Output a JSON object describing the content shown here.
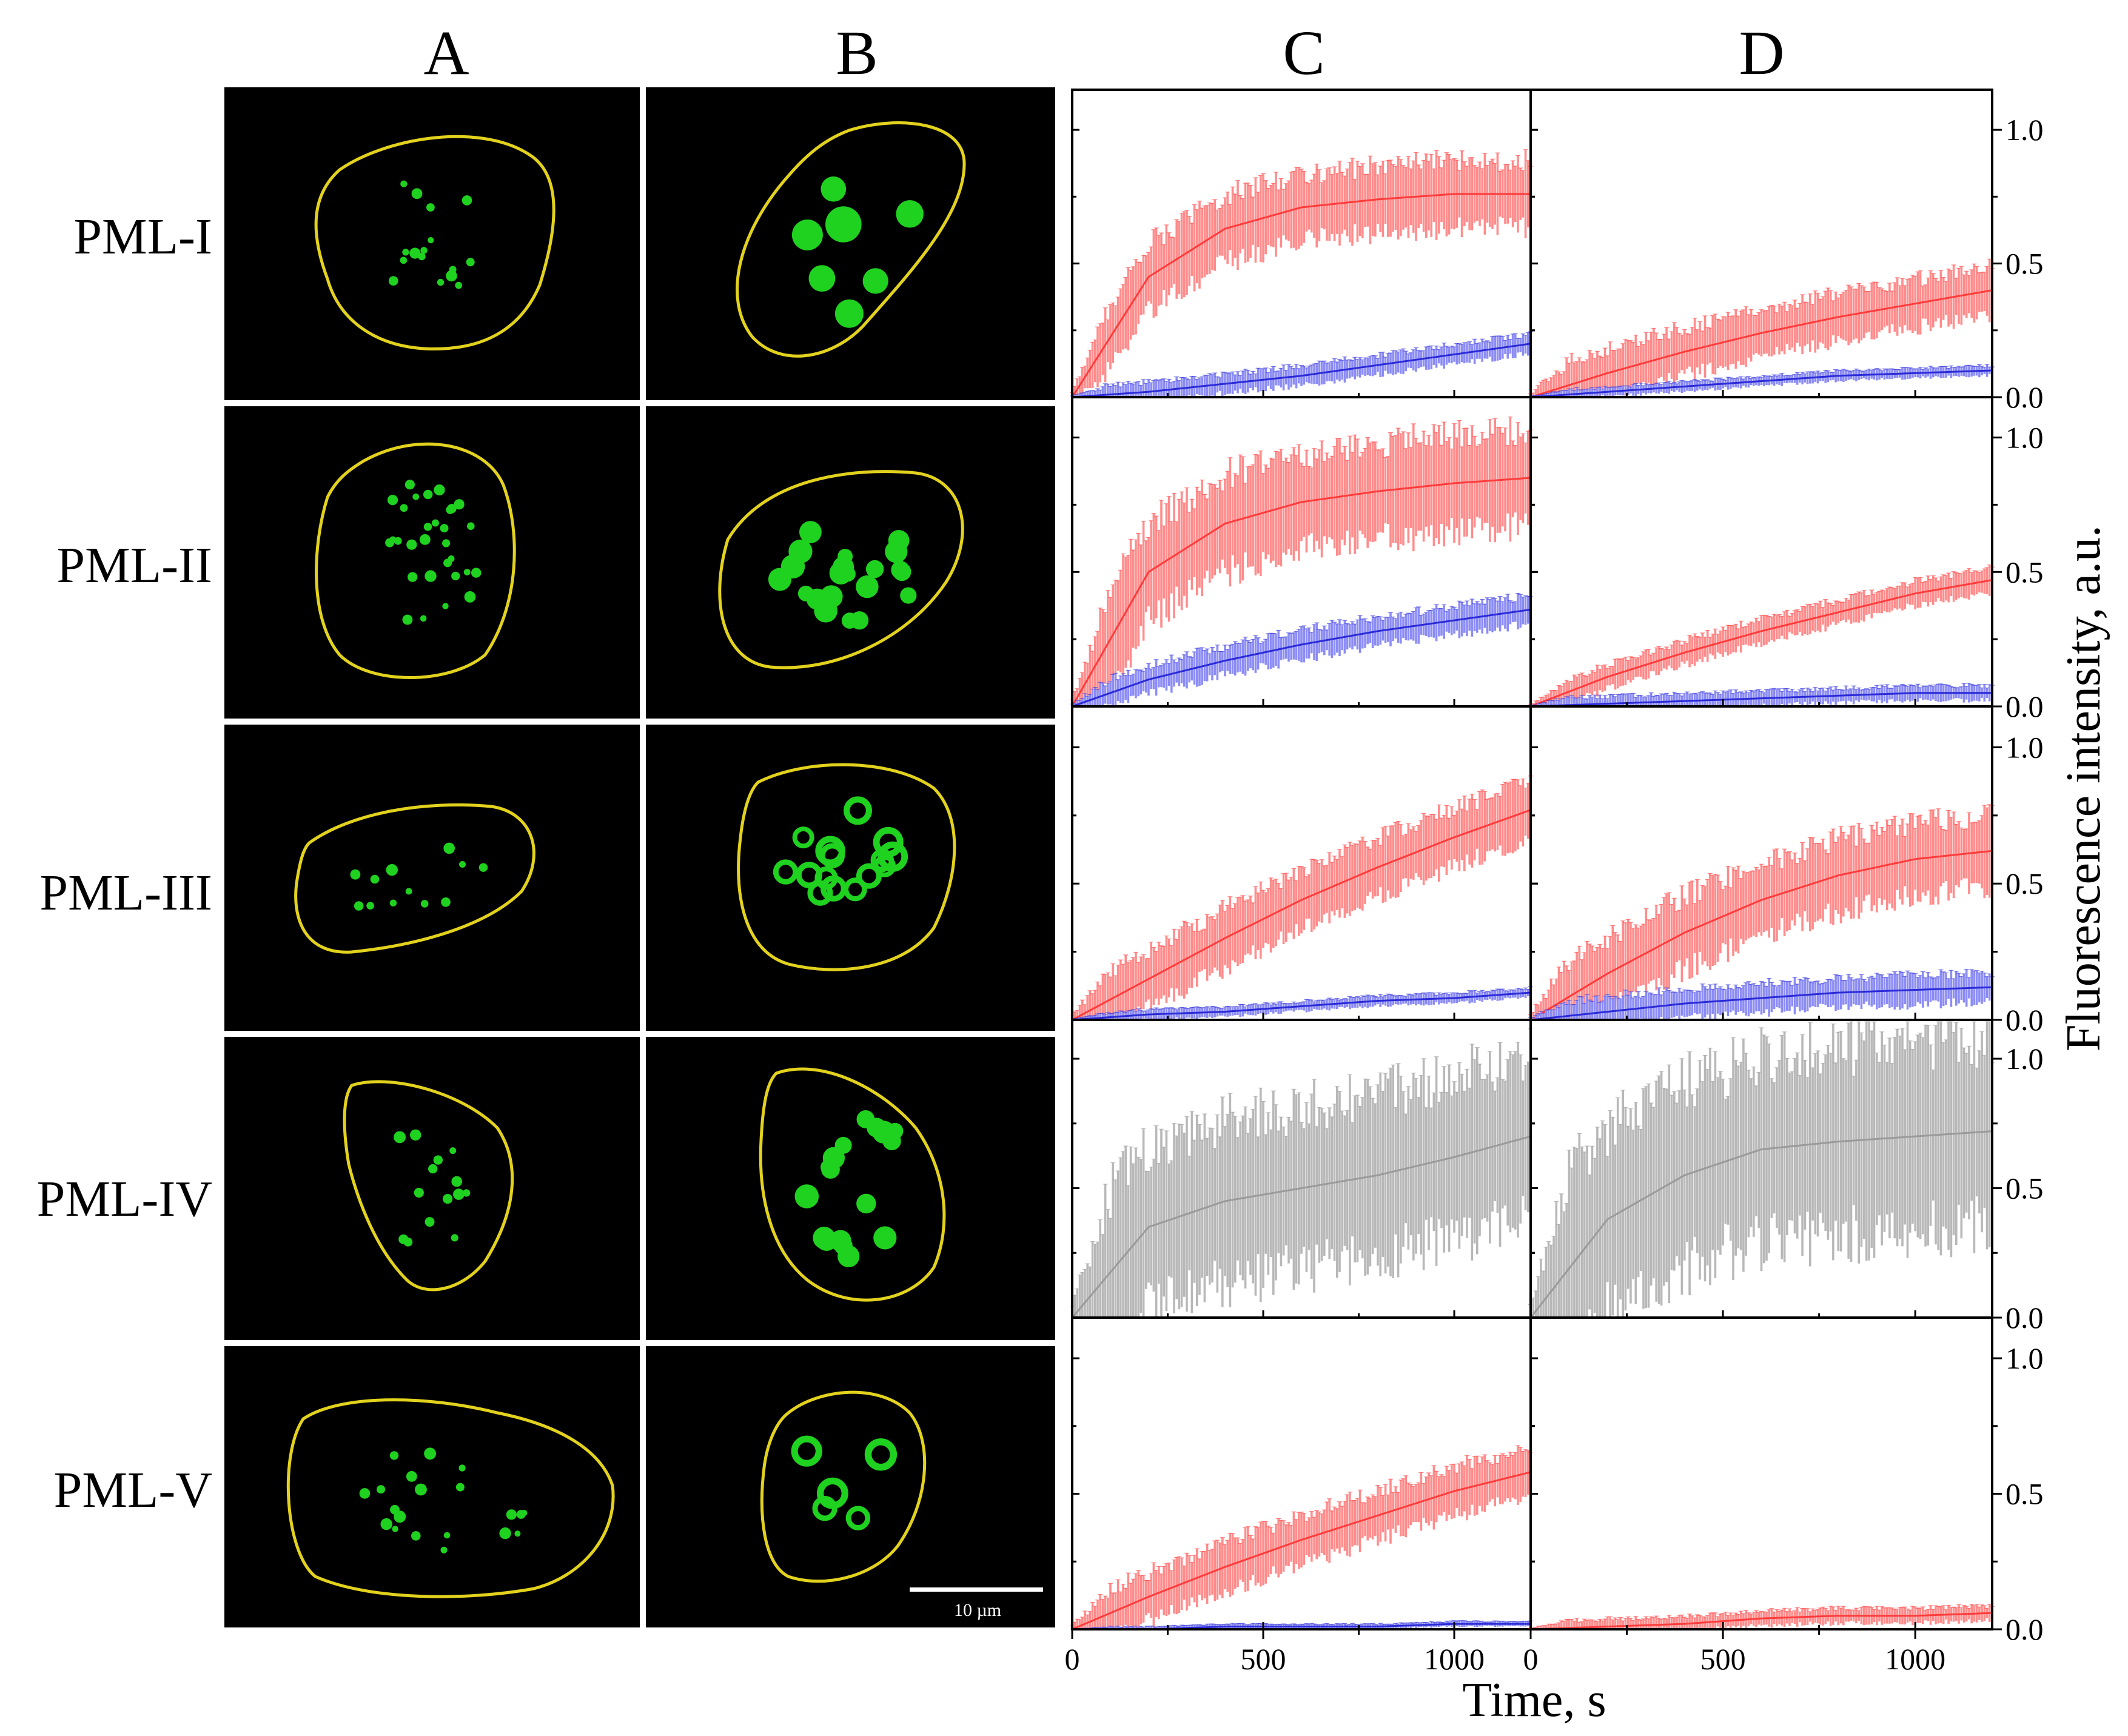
{
  "figure": {
    "column_labels": [
      "A",
      "B",
      "C",
      "D"
    ],
    "row_labels": [
      "PML-I",
      "PML-II",
      "PML-III",
      "PML-IV",
      "PML-V"
    ],
    "scale_bar_label": "10 µm",
    "colors": {
      "nucleus_outline": "#e3d21d",
      "nucleus_bodies": "#1fd21f",
      "image_background": "#000000",
      "series_red": "#ff3b3b",
      "series_red_band": "#ff8c8c",
      "series_blue": "#2a2ad8",
      "series_blue_band": "#8c8cf5",
      "series_gray": "#9a9a9a",
      "series_gray_band": "#b8b8b8",
      "separator": "#ffffff"
    },
    "micrographs": [
      {
        "row": "PML-I",
        "column": "A",
        "pattern": "small foci",
        "foci_count": 16
      },
      {
        "row": "PML-I",
        "column": "B",
        "pattern": "large bodies",
        "foci_count": 7
      },
      {
        "row": "PML-II",
        "column": "A",
        "pattern": "small foci",
        "foci_count": 30
      },
      {
        "row": "PML-II",
        "column": "B",
        "pattern": "medium bodies",
        "foci_count": 22
      },
      {
        "row": "PML-III",
        "column": "A",
        "pattern": "small foci",
        "foci_count": 12
      },
      {
        "row": "PML-III",
        "column": "B",
        "pattern": "ring bodies",
        "foci_count": 15
      },
      {
        "row": "PML-IV",
        "column": "A",
        "pattern": "small foci",
        "foci_count": 14
      },
      {
        "row": "PML-IV",
        "column": "B",
        "pattern": "medium bodies",
        "foci_count": 18
      },
      {
        "row": "PML-V",
        "column": "A",
        "pattern": "small foci",
        "foci_count": 20
      },
      {
        "row": "PML-V",
        "column": "B",
        "pattern": "ring bodies",
        "foci_count": 5
      }
    ]
  },
  "chart_data": {
    "type": "line",
    "title": "",
    "xlabel": "Time, s",
    "ylabel": "Fluorescence intensity, a.u.",
    "xlim": [
      0,
      1200
    ],
    "ylim": [
      0,
      1.15
    ],
    "xticks": [
      "0",
      "500",
      "1000"
    ],
    "yticks": [
      "0.0",
      "0.5",
      "1.0"
    ],
    "panels": [
      {
        "column": "C",
        "row": "PML-I",
        "series": [
          {
            "name": "red",
            "x": [
              0,
              200,
              400,
              600,
              800,
              1000,
              1200
            ],
            "y": [
              0,
              0.45,
              0.63,
              0.71,
              0.74,
              0.76,
              0.76
            ],
            "err": 0.14
          },
          {
            "name": "blue",
            "x": [
              0,
              200,
              400,
              600,
              800,
              1000,
              1200
            ],
            "y": [
              0,
              0.02,
              0.05,
              0.08,
              0.12,
              0.16,
              0.2
            ],
            "err": 0.04
          }
        ]
      },
      {
        "column": "D",
        "row": "PML-I",
        "series": [
          {
            "name": "red",
            "x": [
              0,
              200,
              400,
              600,
              800,
              1000,
              1200
            ],
            "y": [
              0,
              0.09,
              0.17,
              0.24,
              0.3,
              0.35,
              0.4
            ],
            "err": 0.1
          },
          {
            "name": "blue",
            "x": [
              0,
              200,
              400,
              600,
              800,
              1000,
              1200
            ],
            "y": [
              0,
              0.02,
              0.04,
              0.06,
              0.08,
              0.09,
              0.1
            ],
            "err": 0.02
          }
        ]
      },
      {
        "column": "C",
        "row": "PML-II",
        "series": [
          {
            "name": "red",
            "x": [
              0,
              200,
              400,
              600,
              800,
              1000,
              1200
            ],
            "y": [
              0,
              0.5,
              0.68,
              0.76,
              0.8,
              0.83,
              0.85
            ],
            "err": 0.2
          },
          {
            "name": "blue",
            "x": [
              0,
              200,
              400,
              600,
              800,
              1000,
              1200
            ],
            "y": [
              0,
              0.1,
              0.17,
              0.23,
              0.28,
              0.32,
              0.36
            ],
            "err": 0.06
          }
        ]
      },
      {
        "column": "D",
        "row": "PML-II",
        "series": [
          {
            "name": "red",
            "x": [
              0,
              200,
              400,
              600,
              800,
              1000,
              1200
            ],
            "y": [
              0,
              0.11,
              0.2,
              0.28,
              0.35,
              0.42,
              0.47
            ],
            "err": 0.05
          },
          {
            "name": "blue",
            "x": [
              0,
              200,
              400,
              600,
              800,
              1000,
              1200
            ],
            "y": [
              0,
              0.01,
              0.02,
              0.03,
              0.04,
              0.05,
              0.05
            ],
            "err": 0.03
          }
        ]
      },
      {
        "column": "C",
        "row": "PML-III",
        "series": [
          {
            "name": "red",
            "x": [
              0,
              200,
              400,
              600,
              800,
              1000,
              1200
            ],
            "y": [
              0,
              0.15,
              0.3,
              0.44,
              0.56,
              0.67,
              0.77
            ],
            "err": 0.12
          },
          {
            "name": "blue",
            "x": [
              0,
              200,
              400,
              600,
              800,
              1000,
              1200
            ],
            "y": [
              0,
              0.02,
              0.03,
              0.05,
              0.07,
              0.08,
              0.1
            ],
            "err": 0.02
          }
        ]
      },
      {
        "column": "D",
        "row": "PML-III",
        "series": [
          {
            "name": "red",
            "x": [
              0,
              200,
              400,
              600,
              800,
              1000,
              1200
            ],
            "y": [
              0,
              0.17,
              0.32,
              0.44,
              0.53,
              0.59,
              0.62
            ],
            "err": 0.15
          },
          {
            "name": "blue",
            "x": [
              0,
              200,
              400,
              600,
              800,
              1000,
              1200
            ],
            "y": [
              0,
              0.03,
              0.06,
              0.08,
              0.1,
              0.11,
              0.12
            ],
            "err": 0.06
          }
        ]
      },
      {
        "column": "C",
        "row": "PML-IV",
        "series": [
          {
            "name": "gray",
            "x": [
              0,
              200,
              400,
              600,
              800,
              1000,
              1200
            ],
            "y": [
              0,
              0.35,
              0.45,
              0.5,
              0.55,
              0.62,
              0.7
            ],
            "err": 0.35
          }
        ]
      },
      {
        "column": "D",
        "row": "PML-IV",
        "series": [
          {
            "name": "gray",
            "x": [
              0,
              200,
              400,
              600,
              800,
              1000,
              1200
            ],
            "y": [
              0,
              0.38,
              0.55,
              0.65,
              0.68,
              0.7,
              0.72
            ],
            "err": 0.4
          }
        ]
      },
      {
        "column": "C",
        "row": "PML-V",
        "series": [
          {
            "name": "red",
            "x": [
              0,
              200,
              400,
              600,
              800,
              1000,
              1200
            ],
            "y": [
              0,
              0.12,
              0.23,
              0.33,
              0.42,
              0.51,
              0.58
            ],
            "err": 0.1
          },
          {
            "name": "blue",
            "x": [
              0,
              200,
              400,
              600,
              800,
              1000,
              1200
            ],
            "y": [
              0,
              0.0,
              0.01,
              0.01,
              0.01,
              0.02,
              0.02
            ],
            "err": 0.01
          }
        ]
      },
      {
        "column": "D",
        "row": "PML-V",
        "series": [
          {
            "name": "red",
            "x": [
              0,
              200,
              400,
              600,
              800,
              1000,
              1200
            ],
            "y": [
              0,
              0.01,
              0.02,
              0.04,
              0.05,
              0.05,
              0.06
            ],
            "err": 0.03
          }
        ]
      }
    ]
  }
}
